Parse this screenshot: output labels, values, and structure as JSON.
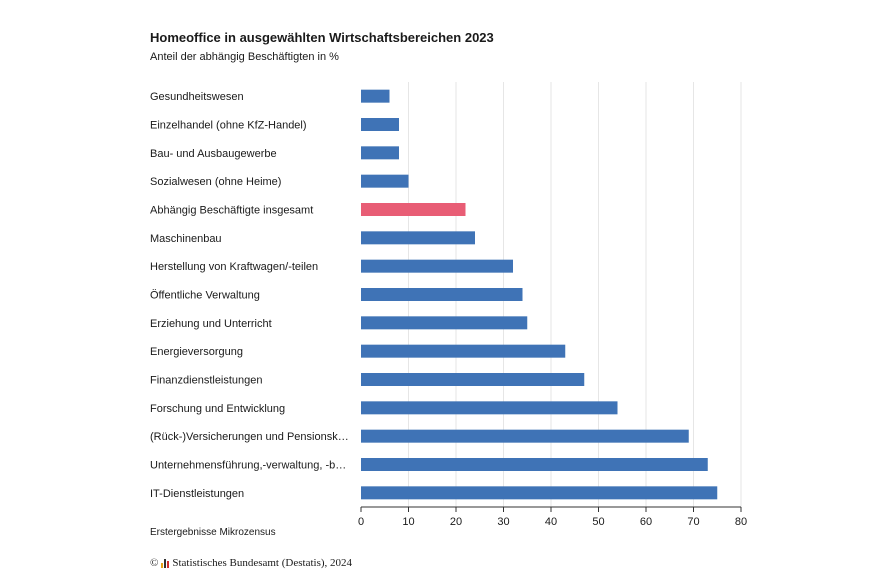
{
  "chart_data": {
    "type": "bar",
    "orientation": "horizontal",
    "title": "Homeoffice in ausgewählten Wirtschaftsbereichen 2023",
    "subtitle": "Anteil der abhängig Beschäftigten in %",
    "categories": [
      "Gesundheitswesen",
      "Einzelhandel (ohne KfZ-Handel)",
      "Bau- und Ausbaugewerbe",
      "Sozialwesen (ohne Heime)",
      "Abhängig Beschäftigte insgesamt",
      "Maschinenbau",
      "Herstellung von Kraftwagen/-teilen",
      "Öffentliche Verwaltung",
      "Erziehung und Unterricht",
      "Energieversorgung",
      "Finanzdienstleistungen",
      "Forschung und Entwicklung",
      "(Rück-)Versicherungen und Pensionsk…",
      "Unternehmensführung,-verwaltung, -b…",
      "IT-Dienstleistungen"
    ],
    "values": [
      6,
      8,
      8,
      10,
      22,
      24,
      32,
      34,
      35,
      43,
      47,
      54,
      69,
      73,
      75
    ],
    "highlight_index": 4,
    "colors": {
      "bar": "#3f73b6",
      "highlight": "#e85d75",
      "grid": "#e6e6e6",
      "axis": "#333333"
    },
    "xlim": [
      0,
      80
    ],
    "xticks": [
      0,
      10,
      20,
      30,
      40,
      50,
      60,
      70,
      80
    ],
    "grid": true,
    "legend": "none"
  },
  "footnote": "Erstergebnisse Mikrozensus",
  "source": {
    "copyright_symbol": "©",
    "text": "Statistisches Bundesamt (Destatis), 2024",
    "logo_icon": "destatis-logo-icon",
    "logo_colors": [
      "#e8a317",
      "#333333",
      "#d03030"
    ]
  }
}
